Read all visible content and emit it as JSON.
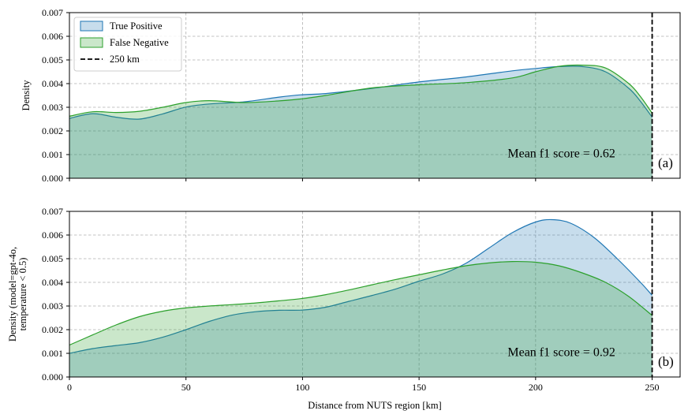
{
  "chart_data": [
    {
      "type": "area",
      "panel": "(a)",
      "title": "",
      "xlabel": "",
      "ylabel": "Density",
      "xlim": [
        0,
        262
      ],
      "ylim": [
        0,
        0.007
      ],
      "yticks": [
        "0.000",
        "0.001",
        "0.002",
        "0.003",
        "0.004",
        "0.005",
        "0.006",
        "0.007"
      ],
      "grid": true,
      "annotation": "Mean f1 score = 0.62",
      "legend": {
        "placement": "top-left",
        "entries": [
          {
            "label": "True Positive",
            "kind": "patch",
            "color": "#1f77b4"
          },
          {
            "label": "False Negative",
            "kind": "patch",
            "color": "#2ca02c"
          },
          {
            "label": "250 km",
            "kind": "dashed-line",
            "color": "#000000"
          }
        ]
      },
      "vline": {
        "x": 250,
        "label": "250 km"
      },
      "series": [
        {
          "name": "True Positive",
          "color": "#1f77b4",
          "fill": "#c6dcee",
          "x": [
            0,
            10,
            20,
            30,
            40,
            50,
            60,
            75,
            90,
            100,
            110,
            130,
            150,
            170,
            190,
            200,
            210,
            220,
            230,
            240,
            245,
            250
          ],
          "y": [
            0.00253,
            0.00273,
            0.00258,
            0.0025,
            0.00272,
            0.00301,
            0.00314,
            0.00323,
            0.00343,
            0.00353,
            0.00358,
            0.0038,
            0.00407,
            0.00428,
            0.00454,
            0.00464,
            0.00472,
            0.00472,
            0.0045,
            0.0038,
            0.00325,
            0.00258
          ]
        },
        {
          "name": "False Negative",
          "color": "#2ca02c",
          "fill": "#c9e8c2",
          "x": [
            0,
            10,
            20,
            30,
            40,
            50,
            60,
            75,
            90,
            100,
            110,
            130,
            150,
            170,
            190,
            200,
            210,
            220,
            230,
            240,
            245,
            250
          ],
          "y": [
            0.00262,
            0.00281,
            0.00278,
            0.00283,
            0.003,
            0.0032,
            0.00328,
            0.0032,
            0.00327,
            0.00336,
            0.0035,
            0.00382,
            0.00395,
            0.00404,
            0.00424,
            0.0045,
            0.00473,
            0.00478,
            0.00466,
            0.004,
            0.00345,
            0.00275
          ]
        }
      ]
    },
    {
      "type": "area",
      "panel": "(b)",
      "title": "",
      "xlabel": "Distance from NUTS region [km]",
      "ylabel": "Density (model=gpt-4o, temperature < 0.5)",
      "ylabel_lines": [
        "Density (model=gpt-4o,",
        "temperature < 0.5)"
      ],
      "xlim": [
        0,
        262
      ],
      "ylim": [
        0,
        0.007
      ],
      "xticks": [
        "0",
        "50",
        "100",
        "150",
        "200",
        "250"
      ],
      "xtick_values": [
        0,
        50,
        100,
        150,
        200,
        250
      ],
      "yticks": [
        "0.000",
        "0.001",
        "0.002",
        "0.003",
        "0.004",
        "0.005",
        "0.006",
        "0.007"
      ],
      "grid": true,
      "annotation": "Mean f1 score = 0.92",
      "vline": {
        "x": 250
      },
      "series": [
        {
          "name": "True Positive",
          "color": "#1f77b4",
          "fill": "#c6dcee",
          "x": [
            0,
            10,
            20,
            30,
            40,
            50,
            60,
            70,
            80,
            90,
            100,
            110,
            120,
            130,
            140,
            150,
            160,
            170,
            180,
            190,
            200,
            207,
            215,
            225,
            235,
            245,
            250
          ],
          "y": [
            0.001,
            0.0012,
            0.00133,
            0.00145,
            0.00168,
            0.002,
            0.00235,
            0.00262,
            0.00276,
            0.00282,
            0.00283,
            0.00295,
            0.0032,
            0.00345,
            0.00372,
            0.00405,
            0.00435,
            0.0048,
            0.00545,
            0.0061,
            0.00655,
            0.00665,
            0.0065,
            0.0059,
            0.005,
            0.004,
            0.00345
          ]
        },
        {
          "name": "False Negative",
          "color": "#2ca02c",
          "fill": "#c9e8c2",
          "x": [
            0,
            10,
            20,
            30,
            40,
            50,
            60,
            70,
            80,
            90,
            100,
            110,
            120,
            130,
            140,
            150,
            160,
            170,
            180,
            190,
            200,
            210,
            220,
            230,
            240,
            250
          ],
          "y": [
            0.00135,
            0.00178,
            0.0022,
            0.00255,
            0.00278,
            0.00292,
            0.003,
            0.00306,
            0.00313,
            0.00322,
            0.00332,
            0.00348,
            0.00368,
            0.0039,
            0.00412,
            0.00432,
            0.00452,
            0.0047,
            0.00482,
            0.00488,
            0.00485,
            0.0047,
            0.0044,
            0.004,
            0.0034,
            0.0026
          ]
        }
      ]
    }
  ]
}
